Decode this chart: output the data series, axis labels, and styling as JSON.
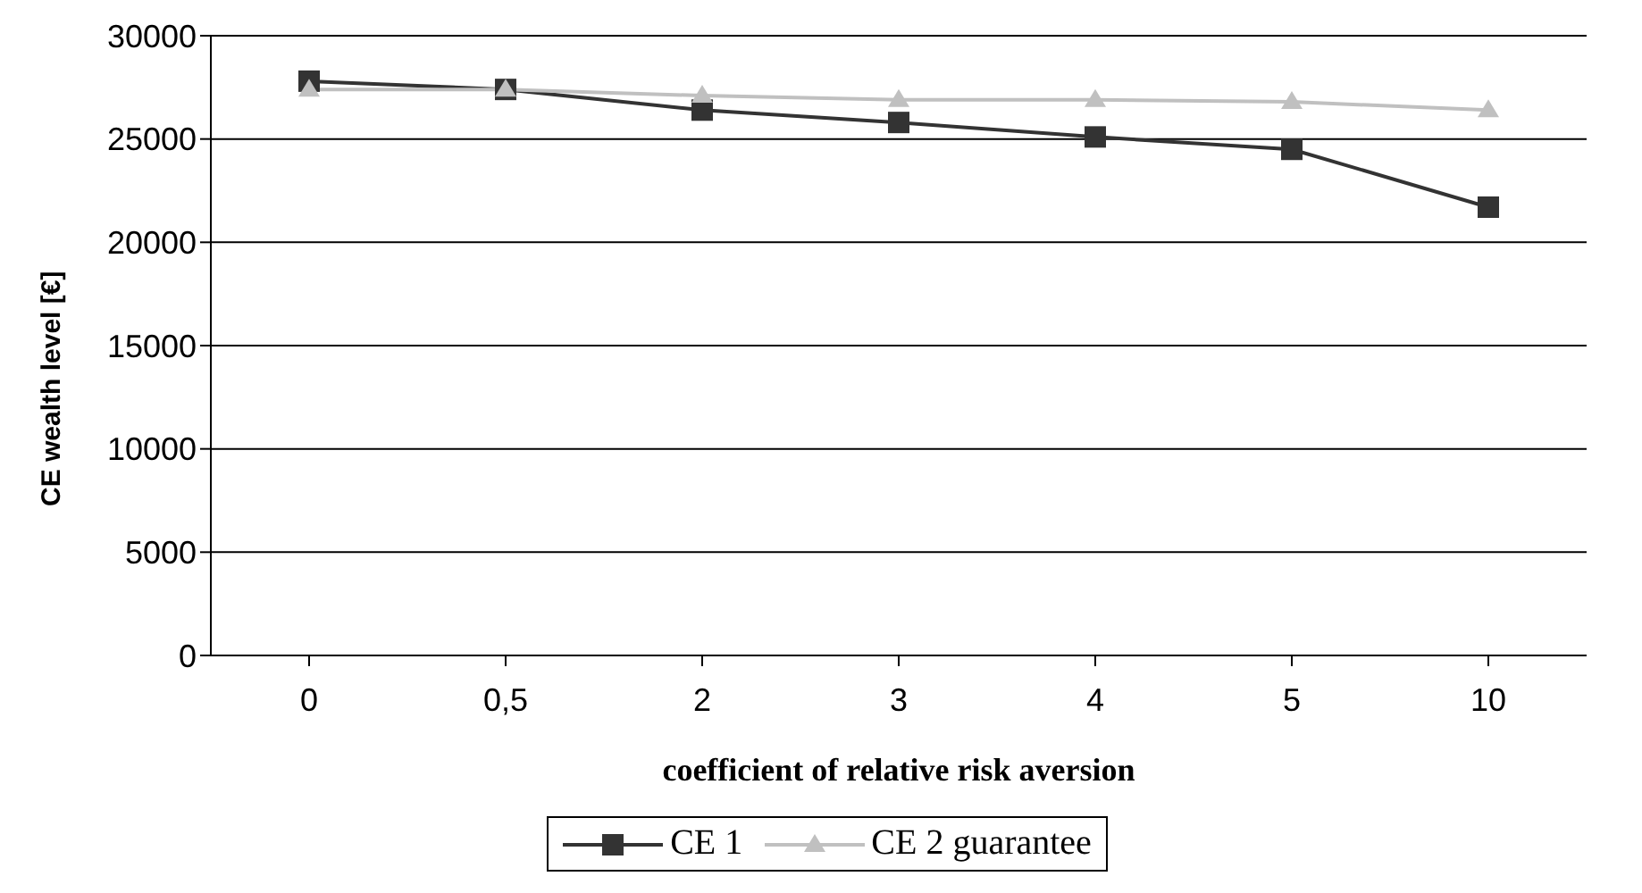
{
  "chart_data": {
    "type": "line",
    "xlabel": "coefficient of relative risk aversion",
    "ylabel": "CE wealth level [€]",
    "categories": [
      "0",
      "0,5",
      "2",
      "3",
      "4",
      "5",
      "10"
    ],
    "series": [
      {
        "name": "CE 1",
        "color": "#333333",
        "marker": "square",
        "values": [
          27800,
          27400,
          26400,
          25800,
          25100,
          24500,
          21700
        ]
      },
      {
        "name": "CE 2 guarantee",
        "color": "#c0c0c0",
        "marker": "triangle",
        "values": [
          27400,
          27400,
          27100,
          26900,
          26900,
          26800,
          26400
        ]
      }
    ],
    "ylim": [
      0,
      30000
    ],
    "yticks": [
      0,
      5000,
      10000,
      15000,
      20000,
      25000,
      30000
    ],
    "grid": "y",
    "legend": "bottom"
  }
}
